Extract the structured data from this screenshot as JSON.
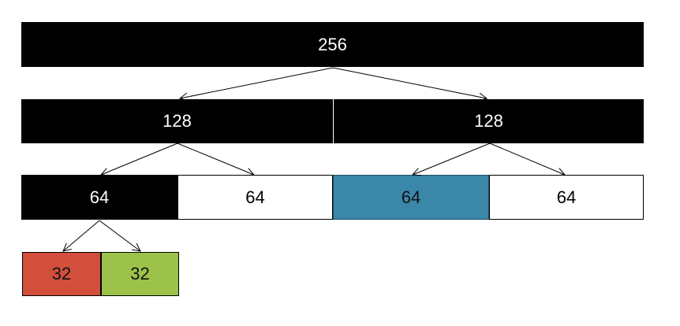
{
  "level0": {
    "label": "256"
  },
  "level1": [
    {
      "label": "128"
    },
    {
      "label": "128"
    }
  ],
  "level2": [
    {
      "label": "64"
    },
    {
      "label": "64"
    },
    {
      "label": "64"
    },
    {
      "label": "64"
    }
  ],
  "level3": [
    {
      "label": "32"
    },
    {
      "label": "32"
    }
  ],
  "colors": {
    "dark": "#000000",
    "highlight_blue": "#3a87aa",
    "red": "#d24f3c",
    "green": "#9cc24a"
  }
}
